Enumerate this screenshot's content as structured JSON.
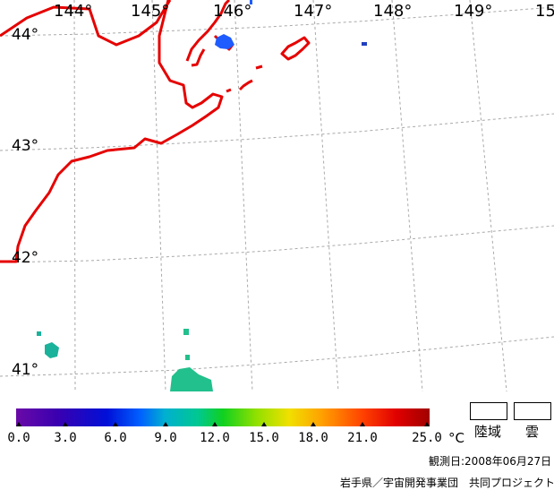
{
  "map": {
    "lon_labels": [
      "144°",
      "145°",
      "146°",
      "147°",
      "148°",
      "149°",
      "15"
    ],
    "lat_labels": [
      "44°",
      "43°",
      "42°",
      "41°"
    ]
  },
  "colorbar": {
    "ticks": [
      "0.0",
      "3.0",
      "6.0",
      "9.0",
      "12.0",
      "15.0",
      "18.0",
      "21.0",
      "25.0"
    ],
    "unit": "°C",
    "range": [
      0,
      25
    ]
  },
  "legend": {
    "land_label": "陸域",
    "cloud_label": "雲"
  },
  "footer": {
    "observation_date": "観測日:2008年06月27日",
    "credit": "岩手県／宇宙開発事業団　共同プロジェクト"
  },
  "colors": {
    "coastline": "#e60000",
    "grid": "#a0a0a0"
  }
}
